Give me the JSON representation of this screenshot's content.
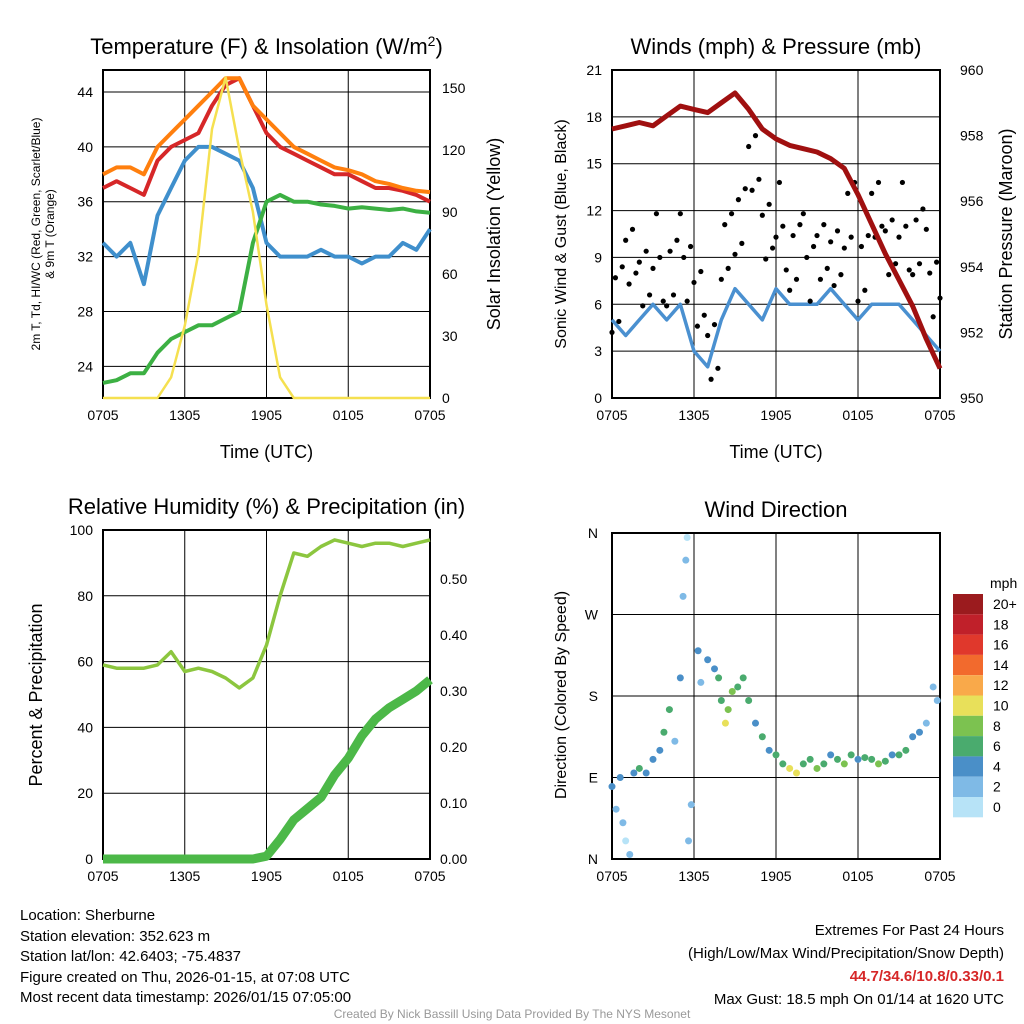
{
  "chart_data": [
    {
      "type": "line",
      "title": "Temperature (F) & Insolation (W/m²)",
      "title_main": "Temperature (F) & Insolation (W/m",
      "title_sup": "2",
      "title_end": ")",
      "xlabel": "Time (UTC)",
      "ylabel_line1": "2m T, Td, HI/WC (Red, Green, Scarlet/Blue)",
      "ylabel_line2": "& 9m T (Orange)",
      "y2label": "Solar Insolation (Yellow)",
      "xticks": [
        "0705",
        "1305",
        "1905",
        "0105",
        "0705"
      ],
      "yticks": [
        24,
        28,
        32,
        36,
        40,
        44
      ],
      "y2ticks": [
        0,
        30,
        60,
        90,
        120,
        150
      ],
      "ylim": [
        21.7,
        45.6
      ],
      "y2lim": [
        0,
        158.6
      ],
      "x_hours": [
        0,
        1,
        2,
        3,
        4,
        5,
        6,
        7,
        8,
        9,
        10,
        11,
        12,
        13,
        14,
        15,
        16,
        17,
        18,
        19,
        20,
        21,
        22,
        23,
        24
      ],
      "series": [
        {
          "name": "2m T",
          "color": "#d62728",
          "axis": "left",
          "values": [
            37,
            37.5,
            37,
            36.5,
            39,
            40,
            40.5,
            41,
            43,
            44.5,
            45,
            43,
            41,
            40,
            39.5,
            39,
            38.5,
            38,
            38,
            37.5,
            37,
            37,
            36.8,
            36.5,
            36
          ]
        },
        {
          "name": "9m T",
          "color": "#ff7f0e",
          "axis": "left",
          "values": [
            38,
            38.5,
            38.5,
            38,
            40,
            41,
            42,
            43,
            44,
            45,
            45,
            43,
            42,
            41,
            40,
            39.5,
            39,
            38.5,
            38.3,
            38,
            37.5,
            37.3,
            37,
            36.8,
            36.7
          ]
        },
        {
          "name": "Td",
          "color": "#3f8fcc",
          "axis": "left",
          "values": [
            33,
            32,
            33,
            30,
            35,
            37,
            39,
            40,
            40,
            39.5,
            39,
            37,
            33,
            32,
            32,
            32,
            32.5,
            32,
            32,
            31.5,
            32,
            32,
            33,
            32.5,
            34
          ]
        },
        {
          "name": "HI/WC",
          "color": "#3cb043",
          "axis": "left",
          "values": [
            22.8,
            23,
            23.5,
            23.5,
            25,
            26,
            26.5,
            27,
            27,
            27.5,
            28,
            33,
            36,
            36.5,
            36,
            36,
            35.8,
            35.7,
            35.5,
            35.6,
            35.5,
            35.4,
            35.5,
            35.3,
            35.2
          ]
        },
        {
          "name": "Solar Insolation",
          "color": "#f5e050",
          "axis": "right",
          "values": [
            0,
            0,
            0,
            0,
            0,
            10,
            35,
            70,
            130,
            155,
            120,
            90,
            45,
            10,
            0,
            0,
            0,
            0,
            0,
            0,
            0,
            0,
            0,
            0,
            0
          ]
        }
      ]
    },
    {
      "type": "line",
      "title": "Winds (mph) & Pressure (mb)",
      "xlabel": "Time (UTC)",
      "ylabel": "Sonic Wind & Gust (Blue, Black)",
      "y2label": "Station Pressure (Maroon)",
      "xticks": [
        "0705",
        "1305",
        "1905",
        "0105",
        "0705"
      ],
      "yticks": [
        0,
        3,
        6,
        9,
        12,
        15,
        18,
        21
      ],
      "y2ticks": [
        950,
        952,
        954,
        956,
        958,
        960
      ],
      "ylim": [
        0,
        21
      ],
      "y2lim": [
        950,
        960
      ],
      "x_hours": [
        0,
        1,
        2,
        3,
        4,
        5,
        6,
        7,
        8,
        9,
        10,
        11,
        12,
        13,
        14,
        15,
        16,
        17,
        18,
        19,
        20,
        21,
        22,
        23,
        24
      ],
      "series": [
        {
          "name": "Sonic Wind",
          "color": "#4a90d0",
          "axis": "left",
          "values": [
            5,
            4,
            5,
            6,
            5,
            6,
            3,
            2,
            5,
            7,
            6,
            5,
            7,
            6,
            6,
            6,
            7,
            6,
            5,
            6,
            6,
            6,
            5,
            4,
            3
          ]
        },
        {
          "name": "Gust",
          "color": "#000000",
          "axis": "left",
          "style": "scatter",
          "values": [
            7,
            8,
            8,
            9,
            8,
            9,
            6,
            4,
            9,
            12,
            14,
            11,
            11,
            9,
            9,
            9,
            10,
            11,
            9,
            11,
            10,
            11,
            10,
            8,
            5
          ]
        },
        {
          "name": "Station Pressure",
          "color": "#a01010",
          "axis": "right",
          "values": [
            958.2,
            958.3,
            958.4,
            958.3,
            958.6,
            958.9,
            958.8,
            958.7,
            959,
            959.3,
            958.8,
            958.2,
            957.9,
            957.7,
            957.6,
            957.5,
            957.3,
            957,
            956.2,
            955.3,
            954.4,
            953.6,
            952.8,
            951.8,
            950.9
          ]
        }
      ]
    },
    {
      "type": "line",
      "title": "Relative Humidity (%) & Precipitation (in)",
      "ylabel": "Percent & Precipitation",
      "xticks": [
        "0705",
        "1305",
        "1905",
        "0105",
        "0705"
      ],
      "yticks": [
        0,
        20,
        40,
        60,
        80,
        100
      ],
      "y2ticks": [
        "0.00",
        "0.10",
        "0.20",
        "0.30",
        "0.40",
        "0.50"
      ],
      "ylim": [
        0,
        100
      ],
      "y2lim": [
        0,
        0.5875
      ],
      "x_hours": [
        0,
        1,
        2,
        3,
        4,
        5,
        6,
        7,
        8,
        9,
        10,
        11,
        12,
        13,
        14,
        15,
        16,
        17,
        18,
        19,
        20,
        21,
        22,
        23,
        24
      ],
      "series": [
        {
          "name": "Relative Humidity",
          "color": "#8cc63f",
          "axis": "left",
          "values": [
            59,
            58,
            58,
            58,
            59,
            63,
            57,
            58,
            57,
            55,
            52,
            55,
            65,
            80,
            93,
            92,
            95,
            97,
            96,
            95,
            96,
            96,
            95,
            96,
            97
          ]
        },
        {
          "name": "Precipitation",
          "color": "#4cb848",
          "axis": "right",
          "values": [
            0,
            0,
            0,
            0,
            0,
            0,
            0,
            0,
            0,
            0,
            0,
            0,
            0.005,
            0.035,
            0.07,
            0.09,
            0.11,
            0.15,
            0.18,
            0.22,
            0.25,
            0.27,
            0.285,
            0.3,
            0.32
          ]
        }
      ]
    },
    {
      "type": "scatter",
      "title": "Wind Direction",
      "ylabel": "Direction (Colored By Speed)",
      "xticks": [
        "0705",
        "1305",
        "1905",
        "0105",
        "0705"
      ],
      "yticks": [
        "N",
        "E",
        "S",
        "W",
        "N"
      ],
      "ylim": [
        0,
        360
      ],
      "legend": {
        "title": "mph",
        "labels": [
          "20+",
          "18",
          "16",
          "14",
          "12",
          "10",
          "8",
          "6",
          "4",
          "2",
          "0"
        ],
        "colors": [
          "#9b1b1e",
          "#c0202a",
          "#e0382c",
          "#f26a2d",
          "#f9a94a",
          "#e8e05a",
          "#7cc250",
          "#4aab6e",
          "#4a8fc8",
          "#7fbae6",
          "#b7e3f7"
        ]
      },
      "points": [
        [
          0,
          80,
          4
        ],
        [
          0.3,
          55,
          3
        ],
        [
          0.6,
          90,
          4
        ],
        [
          0.8,
          40,
          2
        ],
        [
          1,
          20,
          1
        ],
        [
          1.3,
          5,
          3
        ],
        [
          1.6,
          95,
          5
        ],
        [
          2,
          100,
          6
        ],
        [
          2.5,
          95,
          4
        ],
        [
          3,
          110,
          5
        ],
        [
          3.5,
          120,
          4
        ],
        [
          3.8,
          140,
          6
        ],
        [
          4.2,
          165,
          6
        ],
        [
          4.6,
          130,
          3
        ],
        [
          5,
          200,
          4
        ],
        [
          5.2,
          290,
          2
        ],
        [
          5.4,
          330,
          2
        ],
        [
          5.5,
          355,
          1
        ],
        [
          5.6,
          20,
          2
        ],
        [
          5.8,
          60,
          3
        ],
        [
          6.3,
          230,
          4
        ],
        [
          6.5,
          195,
          3
        ],
        [
          7,
          220,
          4
        ],
        [
          7.5,
          210,
          5
        ],
        [
          7.8,
          200,
          6
        ],
        [
          8,
          175,
          7
        ],
        [
          8.3,
          150,
          10
        ],
        [
          8.5,
          165,
          8
        ],
        [
          8.8,
          185,
          8
        ],
        [
          9.2,
          190,
          6
        ],
        [
          9.6,
          200,
          7
        ],
        [
          10,
          175,
          6
        ],
        [
          10.5,
          150,
          5
        ],
        [
          11,
          135,
          6
        ],
        [
          11.5,
          120,
          5
        ],
        [
          12,
          115,
          7
        ],
        [
          12.5,
          105,
          6
        ],
        [
          13,
          100,
          10
        ],
        [
          13.5,
          95,
          10
        ],
        [
          14,
          105,
          6
        ],
        [
          14.5,
          110,
          7
        ],
        [
          15,
          100,
          8
        ],
        [
          15.5,
          105,
          6
        ],
        [
          16,
          115,
          5
        ],
        [
          16.5,
          110,
          7
        ],
        [
          17,
          105,
          8
        ],
        [
          17.5,
          115,
          6
        ],
        [
          18,
          110,
          5
        ],
        [
          18.5,
          112,
          7
        ],
        [
          19,
          110,
          6
        ],
        [
          19.5,
          105,
          8
        ],
        [
          20,
          108,
          6
        ],
        [
          20.5,
          115,
          5
        ],
        [
          21,
          115,
          6
        ],
        [
          21.5,
          120,
          6
        ],
        [
          22,
          135,
          5
        ],
        [
          22.5,
          140,
          4
        ],
        [
          23,
          150,
          3
        ],
        [
          23.5,
          190,
          2
        ],
        [
          23.8,
          175,
          2
        ]
      ]
    }
  ],
  "footer_left": [
    "Location: Sherburne",
    "Station elevation: 352.623 m",
    "Station lat/lon: 42.6403; -75.4837",
    "Figure created on Thu, 2026-01-15, at 07:08 UTC",
    "Most recent data timestamp: 2026/01/15 07:05:00"
  ],
  "footer_right": {
    "line1": "Extremes For Past 24 Hours",
    "line2": "(High/Low/Max Wind/Precipitation/Snow Depth)",
    "extremes": "44.7/34.6/10.8/0.33/0.1",
    "gust": "Max Gust: 18.5 mph On 01/14 at 1620 UTC",
    "extremes_color": "#d62728"
  },
  "credit": "Created By Nick Bassill Using Data Provided By The NYS Mesonet"
}
